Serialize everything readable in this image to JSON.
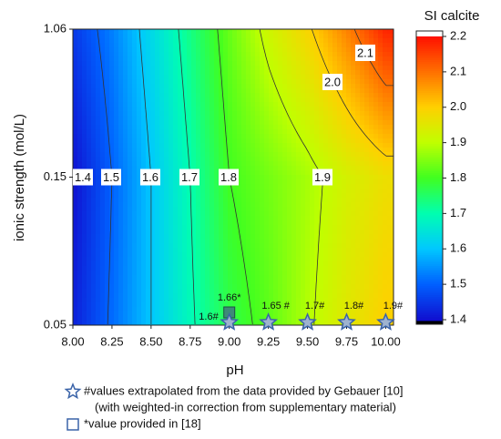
{
  "chart_data": {
    "type": "contour",
    "x_label": "pH",
    "y_label": "ionic strength (mol/L)",
    "colorbar_title": "SI calcite",
    "x": [
      8.0,
      8.25,
      8.5,
      8.75,
      9.0,
      9.25,
      9.5,
      9.75,
      10.0
    ],
    "y": [
      "0.05",
      "0.15",
      "1.06"
    ],
    "z": [
      [
        1.42,
        1.51,
        1.6,
        1.69,
        1.77,
        1.82,
        1.89,
        1.95,
        2.0
      ],
      [
        1.4,
        1.5,
        1.6,
        1.7,
        1.8,
        1.84,
        1.88,
        1.93,
        1.97
      ],
      [
        1.45,
        1.53,
        1.63,
        1.73,
        1.83,
        1.92,
        1.99,
        2.08,
        2.18
      ]
    ],
    "xlim": [
      8.0,
      10.05
    ],
    "xticks": [
      {
        "value": 8,
        "label": "8.00"
      },
      {
        "value": 8.25,
        "label": "8.25"
      },
      {
        "value": 8.5,
        "label": "8.50"
      },
      {
        "value": 8.75,
        "label": "8.75"
      },
      {
        "value": 9,
        "label": "9.00"
      },
      {
        "value": 9.25,
        "label": "9.25"
      },
      {
        "value": 9.5,
        "label": "9.50"
      },
      {
        "value": 9.75,
        "label": "9.75"
      },
      {
        "value": 10,
        "label": "10.00"
      }
    ],
    "clim": [
      1.4,
      2.2
    ],
    "cticks": [
      1.4,
      1.5,
      1.6,
      1.7,
      1.8,
      1.9,
      {
        "value": 2,
        "label": "2.0"
      },
      2.1,
      2.2
    ],
    "colormap": [
      "#1010d0",
      "#0060ff",
      "#00c8ff",
      "#00ffb0",
      "#40ff20",
      "#c0ff00",
      "#ffd000",
      "#ff7000",
      "#ff1000"
    ],
    "contour_levels": [
      1.4,
      1.5,
      1.6,
      1.7,
      1.8,
      1.9,
      {
        "value": 2,
        "label": "2.0"
      },
      2.1
    ],
    "extrapolated": {
      "name": "#values extrapolated from the data provided by Gebauer [10]",
      "note": "(with weighted-in correction from supplementary material)",
      "x": [
        9.0,
        9.25,
        9.5,
        9.75,
        10.0
      ],
      "values": [
        1.6,
        1.65,
        1.7,
        1.8,
        1.9
      ],
      "value_labels": [
        "1.6#",
        "1.65 #",
        "1.7#",
        "1.8#",
        "1.9#"
      ],
      "color": "#3a63a8"
    },
    "provided": {
      "name": "*value provided in [18]",
      "x": [
        9.0
      ],
      "values": [
        1.66
      ],
      "value_labels": [
        "1.66*"
      ],
      "color": "#3e8a78"
    }
  }
}
